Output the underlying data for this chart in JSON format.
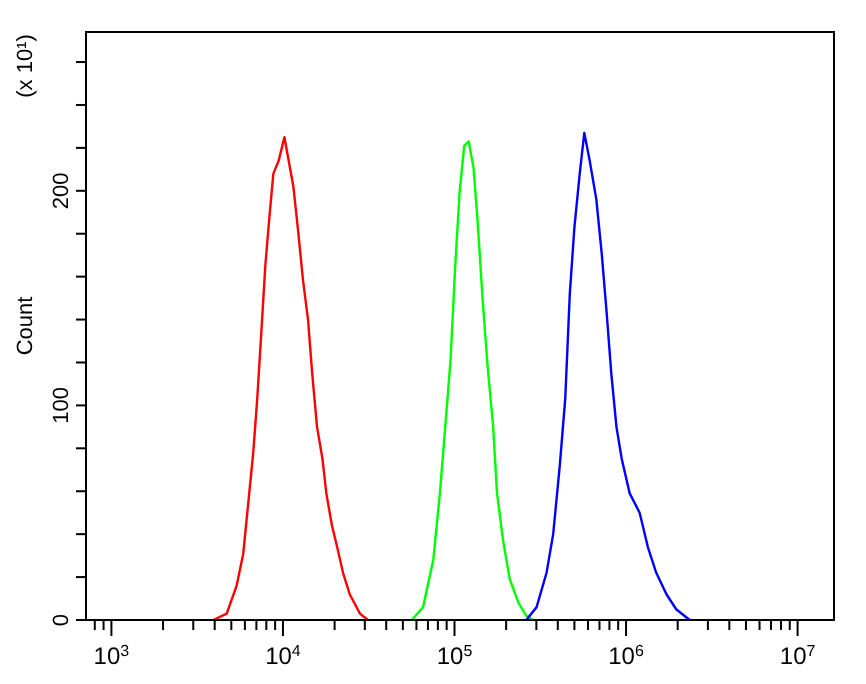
{
  "chart_data": {
    "type": "line",
    "ylabel": "Count",
    "annotations": [
      "(x 10¹)"
    ],
    "log": "x",
    "grid": false,
    "marker": "none",
    "line_style": "solid",
    "xlim": [
      711,
      16300000
    ],
    "ylim": [
      0,
      274
    ],
    "xticks": [
      {
        "value": 800,
        "label": null
      },
      {
        "value": 900,
        "label": null
      },
      {
        "value": 1000,
        "label": "10$^{3}$"
      },
      {
        "value": 2000,
        "label": null
      },
      {
        "value": 3000,
        "label": null
      },
      {
        "value": 4000,
        "label": null
      },
      {
        "value": 5000,
        "label": null
      },
      {
        "value": 6000,
        "label": null
      },
      {
        "value": 7000,
        "label": null
      },
      {
        "value": 8000,
        "label": null
      },
      {
        "value": 9000,
        "label": null
      },
      {
        "value": 10000,
        "label": "10$^{4}$"
      },
      {
        "value": 20000,
        "label": null
      },
      {
        "value": 30000,
        "label": null
      },
      {
        "value": 40000,
        "label": null
      },
      {
        "value": 50000,
        "label": null
      },
      {
        "value": 60000,
        "label": null
      },
      {
        "value": 70000,
        "label": null
      },
      {
        "value": 80000,
        "label": null
      },
      {
        "value": 90000,
        "label": null
      },
      {
        "value": 100000,
        "label": "10$^{5}$"
      },
      {
        "value": 200000,
        "label": null
      },
      {
        "value": 300000,
        "label": null
      },
      {
        "value": 400000,
        "label": null
      },
      {
        "value": 500000,
        "label": null
      },
      {
        "value": 600000,
        "label": null
      },
      {
        "value": 700000,
        "label": null
      },
      {
        "value": 800000,
        "label": null
      },
      {
        "value": 900000,
        "label": null
      },
      {
        "value": 1000000,
        "label": "10$^{6}$"
      },
      {
        "value": 2000000,
        "label": null
      },
      {
        "value": 3000000,
        "label": null
      },
      {
        "value": 4000000,
        "label": null
      },
      {
        "value": 5000000,
        "label": null
      },
      {
        "value": 6000000,
        "label": null
      },
      {
        "value": 7000000,
        "label": null
      },
      {
        "value": 8000000,
        "label": null
      },
      {
        "value": 9000000,
        "label": null
      },
      {
        "value": 10000000,
        "label": "10$^{7}$"
      }
    ],
    "yticks": [
      0,
      {
        "value": 20,
        "label": null
      },
      {
        "value": 40,
        "label": null
      },
      {
        "value": 60,
        "label": null
      },
      {
        "value": 80,
        "label": null
      },
      100,
      {
        "value": 120,
        "label": null
      },
      {
        "value": 140,
        "label": null
      },
      {
        "value": 160,
        "label": null
      },
      {
        "value": 180,
        "label": null
      },
      200,
      {
        "value": 220,
        "label": null
      },
      {
        "value": 240,
        "label": null
      },
      {
        "value": 260,
        "label": null
      }
    ],
    "series": [
      {
        "color": "#ff0000",
        "x": [
          3930,
          4700,
          5370,
          5870,
          6250,
          6710,
          7080,
          7480,
          7890,
          8320,
          8790,
          9440,
          10200,
          10800,
          11500,
          12200,
          13100,
          14000,
          14800,
          15800,
          17000,
          17900,
          19300,
          20700,
          22400,
          24500,
          28100,
          31300
        ],
        "values": [
          0,
          3,
          16,
          31,
          53,
          78,
          103,
          134,
          165,
          187,
          208,
          214,
          225,
          214,
          202,
          183,
          158,
          140,
          115,
          90,
          75,
          59,
          44,
          34,
          22,
          12,
          3,
          0
        ]
      },
      {
        "color": "#00ff00",
        "x": [
          56400,
          65600,
          75200,
          82200,
          88300,
          94800,
          101000,
          107000,
          114000,
          121000,
          129000,
          136000,
          146000,
          156000,
          168000,
          177000,
          192000,
          210000,
          236000,
          262000,
          287000
        ],
        "values": [
          0,
          6,
          28,
          59,
          90,
          121,
          165,
          199,
          221,
          223,
          211,
          187,
          149,
          118,
          90,
          59,
          37,
          19,
          8,
          2,
          0
        ]
      },
      {
        "color": "#0000ff",
        "x": [
          262000,
          301000,
          344000,
          376000,
          411000,
          442000,
          470000,
          500000,
          537000,
          571000,
          614000,
          671000,
          721000,
          771000,
          820000,
          879000,
          944000,
          1050000,
          1200000,
          1340000,
          1500000,
          1720000,
          1960000,
          2350000
        ],
        "values": [
          0,
          6,
          22,
          40,
          72,
          103,
          152,
          183,
          208,
          227,
          214,
          196,
          171,
          143,
          115,
          90,
          75,
          59,
          50,
          34,
          22,
          12,
          5,
          0
        ]
      }
    ]
  }
}
